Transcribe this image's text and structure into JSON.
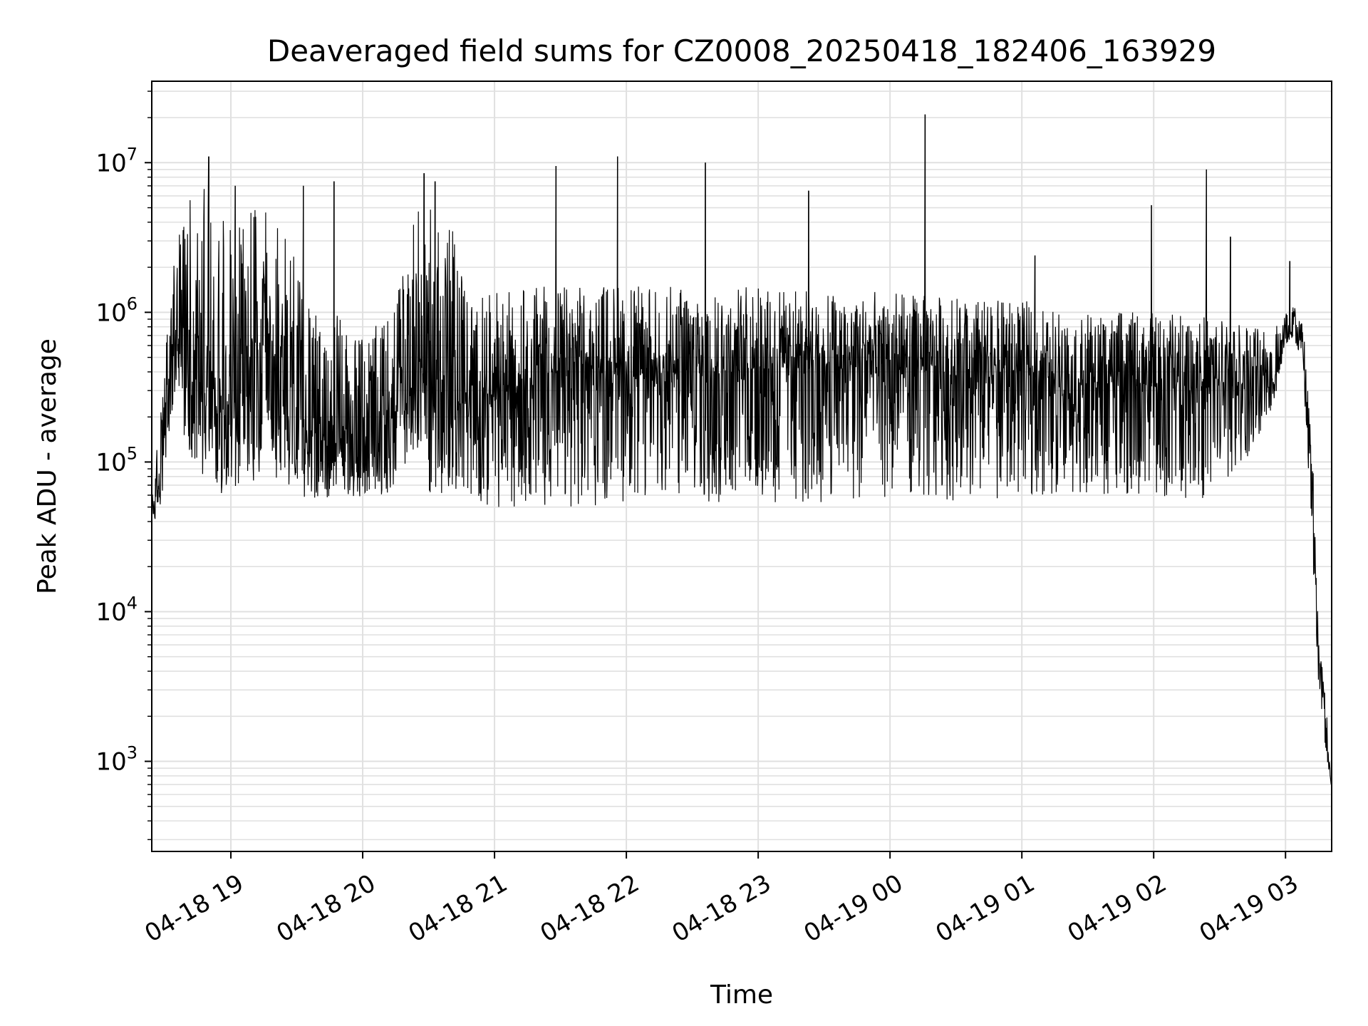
{
  "chart_data": {
    "type": "line",
    "title": "Deaveraged field sums for CZ0008_20250418_182406_163929",
    "xlabel": "Time",
    "ylabel": "Peak ADU - average",
    "yscale": "log",
    "ylim": [
      250,
      35000000
    ],
    "xlim": [
      "2025-04-18 18:24",
      "2025-04-19 03:21"
    ],
    "grid": true,
    "line_color": "#000000",
    "grid_color": "#e0e0e0",
    "x_ticks": [
      "04-18 19",
      "04-18 20",
      "04-18 21",
      "04-18 22",
      "04-18 23",
      "04-19 00",
      "04-19 01",
      "04-19 02",
      "04-19 03"
    ],
    "y_ticks": [
      "10^3",
      "10^4",
      "10^5",
      "10^6",
      "10^7"
    ],
    "series": [
      {
        "x": [
          "2025-04-18 18:24",
          "2025-04-18 18:27",
          "2025-04-18 18:30",
          "2025-04-18 18:35",
          "2025-04-18 18:40",
          "2025-04-18 18:45",
          "2025-04-18 18:48",
          "2025-04-18 18:50",
          "2025-04-18 18:55",
          "2025-04-18 19:00",
          "2025-04-18 19:10",
          "2025-04-18 19:20",
          "2025-04-18 19:30",
          "2025-04-18 19:40",
          "2025-04-18 19:50",
          "2025-04-18 20:00",
          "2025-04-18 20:10",
          "2025-04-18 20:15",
          "2025-04-18 20:20",
          "2025-04-18 20:25",
          "2025-04-18 20:30",
          "2025-04-18 20:40",
          "2025-04-18 20:50",
          "2025-04-18 21:00",
          "2025-04-18 21:15",
          "2025-04-18 21:30",
          "2025-04-18 21:45",
          "2025-04-18 21:55",
          "2025-04-18 22:00",
          "2025-04-18 22:15",
          "2025-04-18 22:30",
          "2025-04-18 22:40",
          "2025-04-18 22:50",
          "2025-04-18 23:00",
          "2025-04-18 23:20",
          "2025-04-18 23:40",
          "2025-04-18 23:55",
          "2025-04-19 00:15",
          "2025-04-19 00:30",
          "2025-04-19 00:45",
          "2025-04-19 01:00",
          "2025-04-19 01:15",
          "2025-04-19 01:30",
          "2025-04-19 01:45",
          "2025-04-19 02:00",
          "2025-04-19 02:15",
          "2025-04-19 02:30",
          "2025-04-19 02:45",
          "2025-04-19 02:55",
          "2025-04-19 03:00",
          "2025-04-19 03:05",
          "2025-04-19 03:08",
          "2025-04-19 03:12",
          "2025-04-19 03:15",
          "2025-04-19 03:18",
          "2025-04-19 03:21"
        ],
        "median": [
          50000,
          60000,
          150000,
          800000,
          600000,
          400000,
          350000,
          250000,
          200000,
          250000,
          250000,
          200000,
          180000,
          150000,
          120000,
          120000,
          150000,
          200000,
          250000,
          300000,
          280000,
          250000,
          220000,
          250000,
          350000,
          400000,
          400000,
          380000,
          380000,
          380000,
          400000,
          400000,
          400000,
          420000,
          420000,
          420000,
          420000,
          400000,
          380000,
          380000,
          380000,
          350000,
          330000,
          320000,
          320000,
          300000,
          320000,
          300000,
          350000,
          700000,
          800000,
          500000,
          50000,
          5000,
          2000,
          800
        ],
        "low": [
          40000,
          40000,
          80000,
          300000,
          120000,
          90000,
          80000,
          60000,
          60000,
          70000,
          65000,
          65000,
          60000,
          55000,
          60000,
          58000,
          60000,
          70000,
          100000,
          120000,
          60000,
          55000,
          55000,
          50000,
          50000,
          50000,
          50000,
          50000,
          55000,
          55000,
          55000,
          50000,
          50000,
          50000,
          50000,
          55000,
          55000,
          55000,
          55000,
          55000,
          60000,
          60000,
          60000,
          60000,
          55000,
          55000,
          60000,
          120000,
          250000,
          600000,
          600000,
          400000,
          30000,
          3000,
          1200,
          600
        ],
        "high": [
          65000,
          150000,
          500000,
          4000000,
          6000000,
          7000000,
          7000000,
          5000000,
          4000000,
          5000000,
          6000000,
          4000000,
          3000000,
          800000,
          1000000,
          700000,
          900000,
          1200000,
          3000000,
          6000000,
          5000000,
          4000000,
          1200000,
          1400000,
          1500000,
          1500000,
          1500000,
          1600000,
          1500000,
          1500000,
          1500000,
          1500000,
          1500000,
          1500000,
          1400000,
          1400000,
          1400000,
          1300000,
          1300000,
          1200000,
          1200000,
          1100000,
          1000000,
          1000000,
          1000000,
          1000000,
          900000,
          900000,
          900000,
          1000000,
          1200000,
          900000,
          200000,
          8000,
          3000,
          1000
        ],
        "spikes": [
          {
            "x": "2025-04-18 18:50",
            "y": 11000000
          },
          {
            "x": "2025-04-18 19:02",
            "y": 7000000
          },
          {
            "x": "2025-04-18 19:33",
            "y": 7000000
          },
          {
            "x": "2025-04-18 19:47",
            "y": 7500000
          },
          {
            "x": "2025-04-18 20:28",
            "y": 8500000
          },
          {
            "x": "2025-04-18 20:33",
            "y": 7500000
          },
          {
            "x": "2025-04-18 21:28",
            "y": 9500000
          },
          {
            "x": "2025-04-18 21:56",
            "y": 11000000
          },
          {
            "x": "2025-04-18 22:36",
            "y": 10000000
          },
          {
            "x": "2025-04-18 23:23",
            "y": 6500000
          },
          {
            "x": "2025-04-19 00:16",
            "y": 21000000
          },
          {
            "x": "2025-04-19 01:06",
            "y": 2400000
          },
          {
            "x": "2025-04-19 01:59",
            "y": 5200000
          },
          {
            "x": "2025-04-19 02:24",
            "y": 9000000
          },
          {
            "x": "2025-04-19 02:35",
            "y": 3200000
          },
          {
            "x": "2025-04-19 03:02",
            "y": 2200000
          }
        ]
      }
    ]
  }
}
